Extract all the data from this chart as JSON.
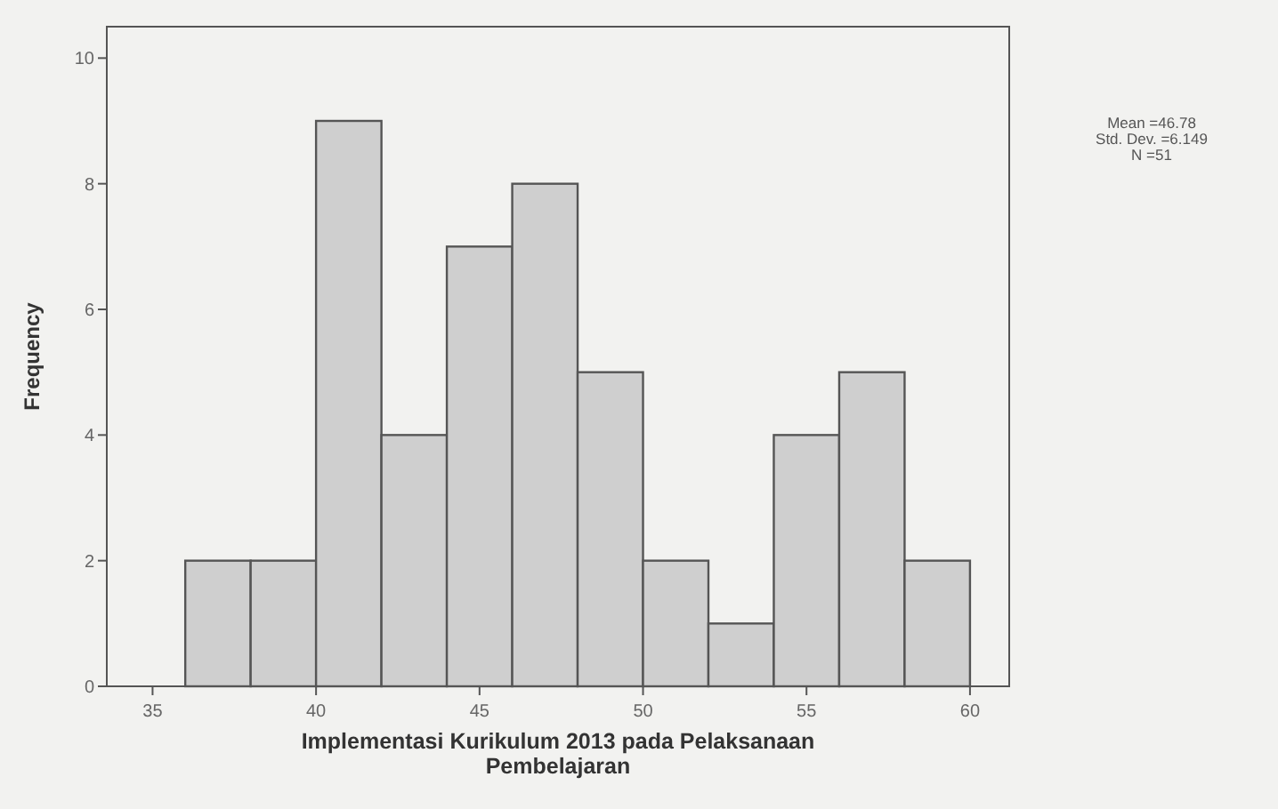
{
  "chart_data": {
    "type": "histogram",
    "xlabel": "Implementasi Kurikulum 2013 pada Pelaksanaan Pembelajaran",
    "ylabel": "Frequency",
    "bins": [
      36,
      38,
      40,
      42,
      44,
      46,
      48,
      50,
      52,
      54,
      56,
      58,
      60
    ],
    "values": [
      2,
      2,
      9,
      4,
      7,
      8,
      5,
      2,
      1,
      4,
      5,
      2
    ],
    "color": "#cfcfcf",
    "xlim": [
      33.6,
      61.2
    ],
    "xticks": [
      35,
      40,
      45,
      50,
      55,
      60
    ],
    "ylim": [
      0,
      10.5
    ],
    "yticks": [
      0,
      2,
      4,
      6,
      8,
      10
    ],
    "grid": false,
    "annotations": [
      "Mean =46.78",
      "Std. Dev. =6.149",
      "N =51"
    ]
  }
}
